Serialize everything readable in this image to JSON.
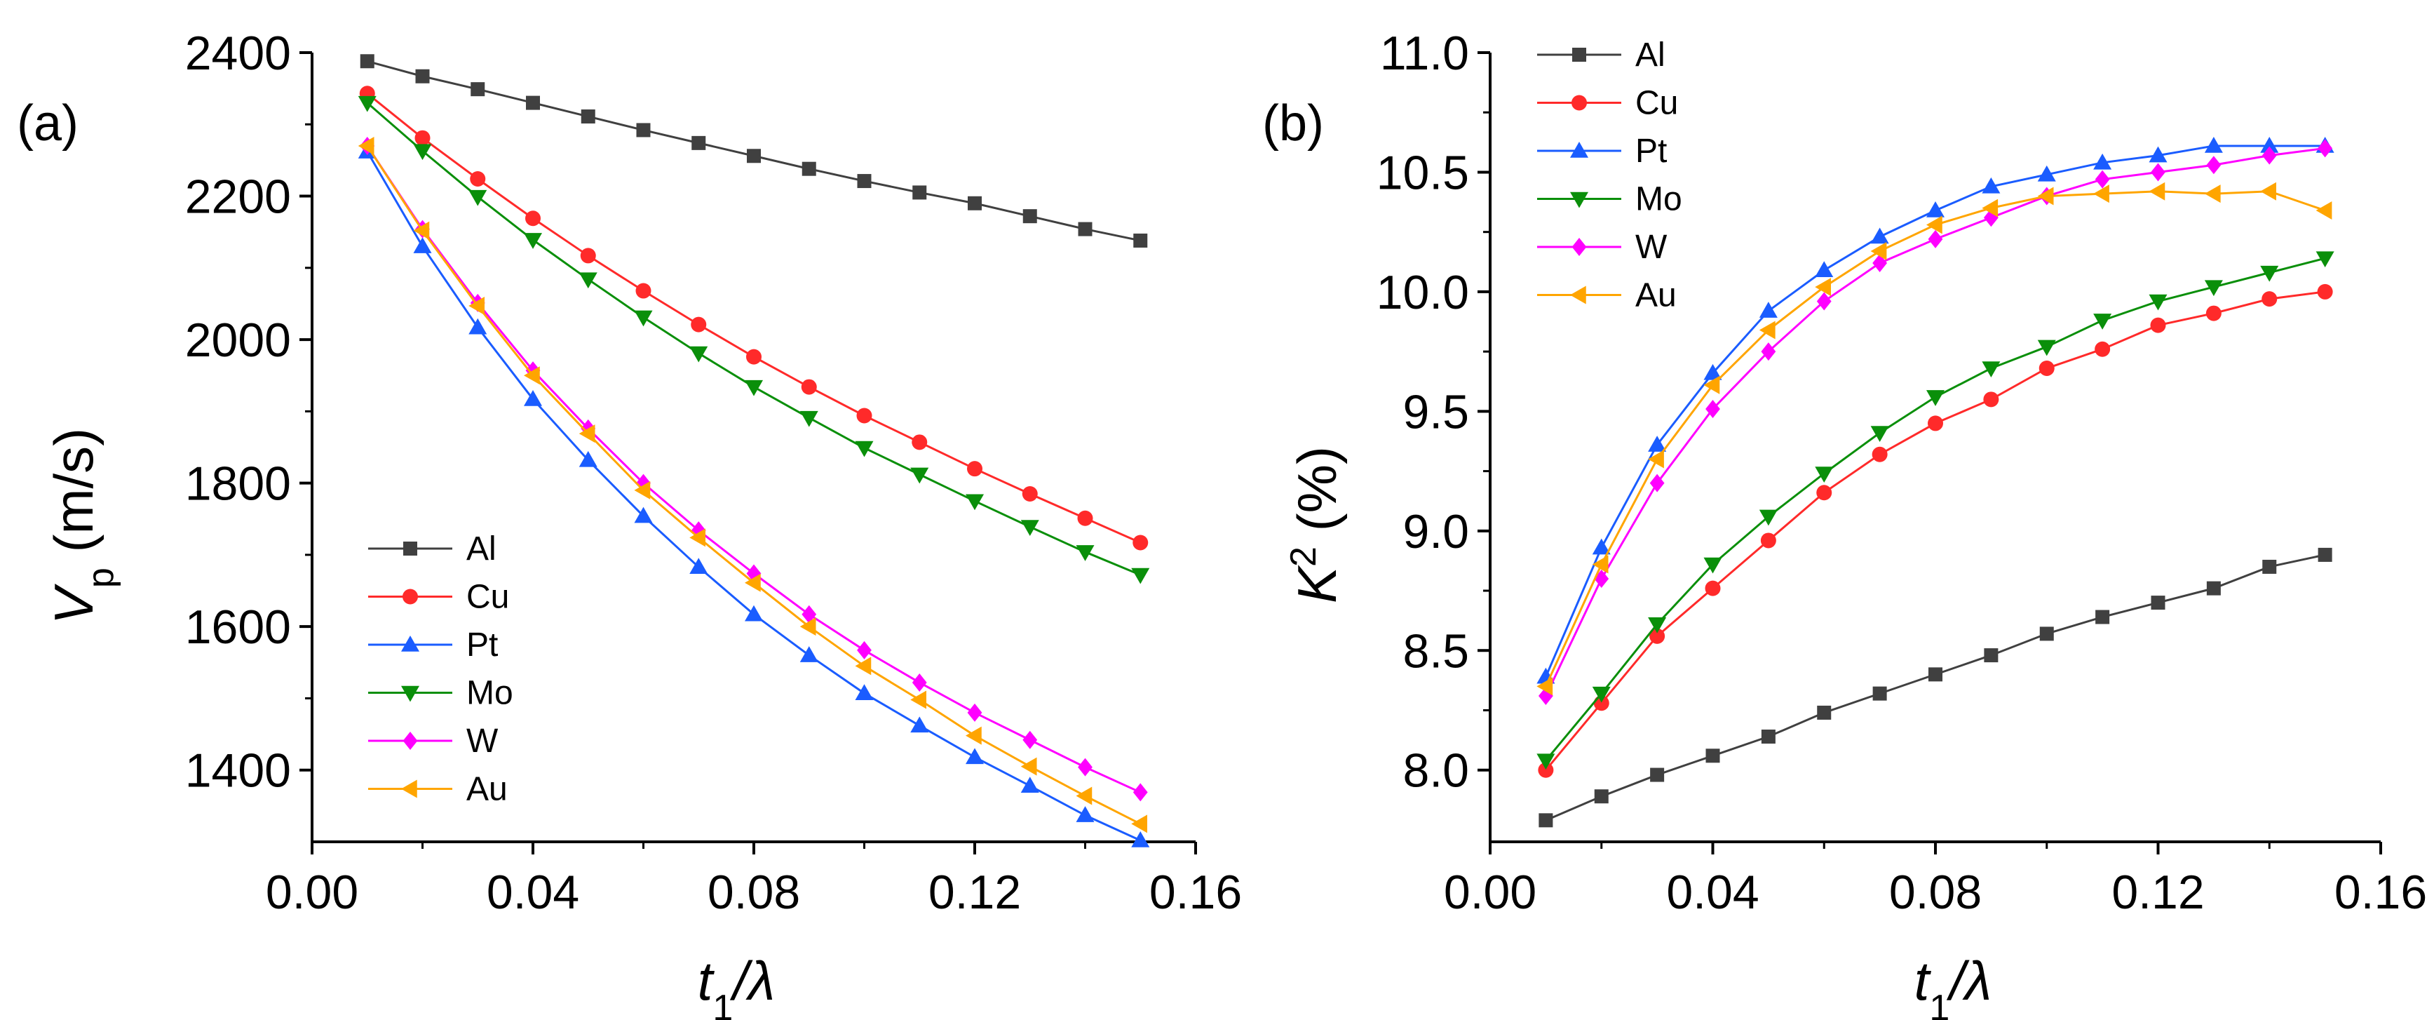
{
  "chart_data": [
    {
      "panel_label": "(a)",
      "type": "line",
      "xlabel": {
        "main": "t",
        "sub": "1",
        "rest": "/λ"
      },
      "ylabel": {
        "main": "V",
        "sub": "p",
        "rest": " (m/s)"
      },
      "xlim": [
        0.0,
        0.16
      ],
      "ylim": [
        1300,
        2400
      ],
      "xticks": [
        0.0,
        0.04,
        0.08,
        0.12,
        0.16
      ],
      "xtick_labels": [
        "0.00",
        "0.04",
        "0.08",
        "0.12",
        "0.16"
      ],
      "yticks": [
        1400,
        1600,
        1800,
        2000,
        2200,
        2400
      ],
      "ytick_labels": [
        "1400",
        "1600",
        "1800",
        "2000",
        "2200",
        "2400"
      ],
      "legend_position": "bottom-left",
      "x": [
        0.01,
        0.02,
        0.03,
        0.04,
        0.05,
        0.06,
        0.07,
        0.08,
        0.09,
        0.1,
        0.11,
        0.12,
        0.13,
        0.14,
        0.15
      ],
      "series": [
        {
          "name": "Al",
          "color": "#404040",
          "marker": "square",
          "values": [
            2388,
            2367,
            2349,
            2330,
            2311,
            2292,
            2274,
            2256,
            2238,
            2221,
            2205,
            2190,
            2172,
            2154,
            2138
          ]
        },
        {
          "name": "Cu",
          "color": "#ff2a2a",
          "marker": "circle",
          "values": [
            2343,
            2281,
            2224,
            2169,
            2117,
            2068,
            2021,
            1976,
            1934,
            1894,
            1857,
            1820,
            1785,
            1751,
            1717
          ]
        },
        {
          "name": "Pt",
          "color": "#1a5cff",
          "marker": "triangle-up",
          "values": [
            2262,
            2130,
            2017,
            1917,
            1832,
            1754,
            1683,
            1617,
            1560,
            1507,
            1462,
            1418,
            1378,
            1337,
            1302
          ]
        },
        {
          "name": "Mo",
          "color": "#0a8f0a",
          "marker": "triangle-down",
          "values": [
            2330,
            2263,
            2199,
            2139,
            2084,
            2031,
            1981,
            1934,
            1891,
            1849,
            1812,
            1775,
            1739,
            1704,
            1672
          ]
        },
        {
          "name": "W",
          "color": "#ff00ff",
          "marker": "diamond",
          "values": [
            2270,
            2154,
            2051,
            1957,
            1876,
            1800,
            1734,
            1674,
            1617,
            1567,
            1522,
            1480,
            1442,
            1404,
            1369
          ]
        },
        {
          "name": "Au",
          "color": "#ffa500",
          "marker": "triangle-left",
          "values": [
            2270,
            2152,
            2047,
            1950,
            1869,
            1790,
            1724,
            1661,
            1600,
            1545,
            1498,
            1448,
            1405,
            1364,
            1325
          ]
        }
      ]
    },
    {
      "panel_label": "(b)",
      "type": "line",
      "xlabel": {
        "main": "t",
        "sub": "1",
        "rest": "/λ"
      },
      "ylabel": {
        "main": "K",
        "sup": "2",
        "rest": " (%)"
      },
      "xlim": [
        0.0,
        0.16
      ],
      "ylim": [
        7.7,
        11.0
      ],
      "xticks": [
        0.0,
        0.04,
        0.08,
        0.12,
        0.16
      ],
      "xtick_labels": [
        "0.00",
        "0.04",
        "0.08",
        "0.12",
        "0.16"
      ],
      "yticks": [
        8.0,
        8.5,
        9.0,
        9.5,
        10.0,
        10.5,
        11.0
      ],
      "ytick_labels": [
        "8.0",
        "8.5",
        "9.0",
        "9.5",
        "10.0",
        "10.5",
        "11.0"
      ],
      "legend_position": "top-left",
      "x": [
        0.01,
        0.02,
        0.03,
        0.04,
        0.05,
        0.06,
        0.07,
        0.08,
        0.09,
        0.1,
        0.11,
        0.12,
        0.13,
        0.14,
        0.15
      ],
      "series": [
        {
          "name": "Al",
          "color": "#404040",
          "marker": "square",
          "values": [
            7.79,
            7.89,
            7.98,
            8.06,
            8.14,
            8.24,
            8.32,
            8.4,
            8.48,
            8.57,
            8.64,
            8.7,
            8.76,
            8.85,
            8.9
          ]
        },
        {
          "name": "Cu",
          "color": "#ff2a2a",
          "marker": "circle",
          "values": [
            8.0,
            8.28,
            8.56,
            8.76,
            8.96,
            9.16,
            9.32,
            9.45,
            9.55,
            9.68,
            9.76,
            9.86,
            9.91,
            9.97,
            10.0
          ]
        },
        {
          "name": "Pt",
          "color": "#1a5cff",
          "marker": "triangle-up",
          "values": [
            8.39,
            8.93,
            9.36,
            9.66,
            9.92,
            10.09,
            10.23,
            10.34,
            10.44,
            10.49,
            10.54,
            10.57,
            10.61,
            10.61,
            10.61
          ]
        },
        {
          "name": "Mo",
          "color": "#0a8f0a",
          "marker": "triangle-down",
          "values": [
            8.04,
            8.32,
            8.61,
            8.86,
            9.06,
            9.24,
            9.41,
            9.56,
            9.68,
            9.77,
            9.88,
            9.96,
            10.02,
            10.08,
            10.14
          ]
        },
        {
          "name": "W",
          "color": "#ff00ff",
          "marker": "diamond",
          "values": [
            8.31,
            8.8,
            9.2,
            9.51,
            9.75,
            9.96,
            10.12,
            10.22,
            10.31,
            10.4,
            10.47,
            10.5,
            10.53,
            10.57,
            10.6
          ]
        },
        {
          "name": "Au",
          "color": "#ffa500",
          "marker": "triangle-left",
          "values": [
            8.35,
            8.86,
            9.3,
            9.61,
            9.84,
            10.02,
            10.17,
            10.28,
            10.35,
            10.4,
            10.41,
            10.42,
            10.41,
            10.42,
            10.34
          ]
        }
      ]
    }
  ]
}
